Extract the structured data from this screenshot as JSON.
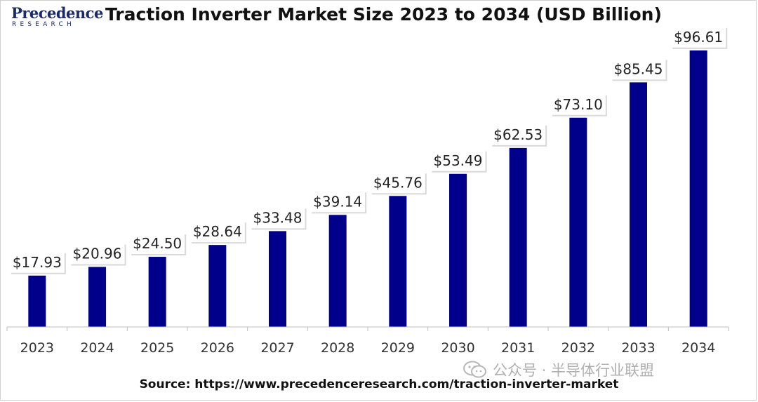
{
  "logo": {
    "name": "Precedence",
    "subtitle": "RESEARCH"
  },
  "chart_data": {
    "type": "bar",
    "title": "Traction Inverter Market Size 2023 to 2034 (USD Billion)",
    "categories": [
      "2023",
      "2024",
      "2025",
      "2026",
      "2027",
      "2028",
      "2029",
      "2030",
      "2031",
      "2032",
      "2033",
      "2034"
    ],
    "values": [
      17.93,
      20.96,
      24.5,
      28.64,
      33.48,
      39.14,
      45.76,
      53.49,
      62.53,
      73.1,
      85.45,
      96.61
    ],
    "value_labels": [
      "$17.93",
      "$20.96",
      "$24.50",
      "$28.64",
      "$33.48",
      "$39.14",
      "$45.76",
      "$53.49",
      "$62.53",
      "$73.10",
      "$85.45",
      "$96.61"
    ],
    "ylim": [
      0,
      100
    ],
    "bar_color": "#00008b",
    "grid": false,
    "xlabel": "",
    "ylabel": ""
  },
  "watermark": "公众号 · 半导体行业联盟",
  "source": "Source: https://www.precedenceresearch.com/traction-inverter-market"
}
